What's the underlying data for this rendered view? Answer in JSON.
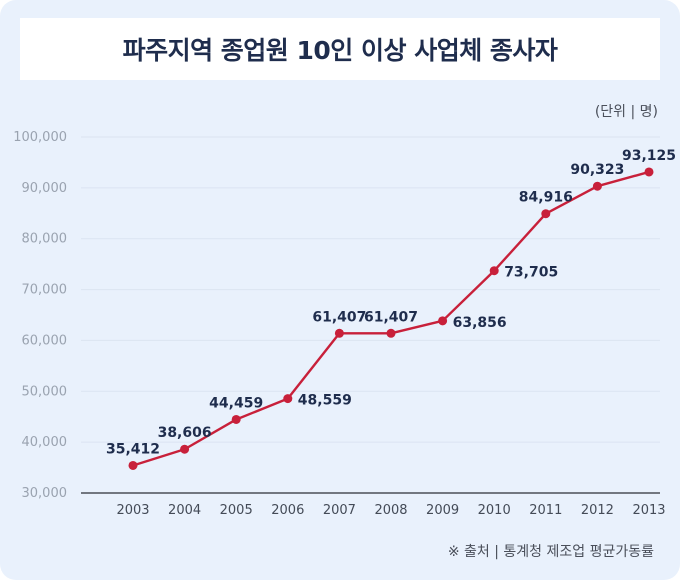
{
  "title": "파주지역 종업원 10인 이상 사업체 종사자",
  "unit_label": "(단위 | 명)",
  "source_label": "※ 출처 | 통계청 제조업 평균가동률",
  "colors": {
    "line": "#c8203a",
    "background": "#e9f1fc",
    "title": "#1f2d4d"
  },
  "chart_data": {
    "type": "line",
    "title": "파주지역 종업원 10인 이상 사업체 종사자",
    "xlabel": "",
    "ylabel": "",
    "categories": [
      "2003",
      "2004",
      "2005",
      "2006",
      "2007",
      "2008",
      "2009",
      "2010",
      "2011",
      "2012",
      "2013"
    ],
    "values": [
      35412,
      38606,
      44459,
      48559,
      61407,
      61407,
      63856,
      73705,
      84916,
      90323,
      93125
    ],
    "data_labels": [
      "35,412",
      "38,606",
      "44,459",
      "48,559",
      "61,407",
      "61,407",
      "63,856",
      "73,705",
      "84,916",
      "90,323",
      "93,125"
    ],
    "yticks": [
      30000,
      40000,
      50000,
      60000,
      70000,
      80000,
      90000,
      100000
    ],
    "ytick_labels": [
      "30,000",
      "40,000",
      "50,000",
      "60,000",
      "70,000",
      "80,000",
      "90,000",
      "100,000"
    ],
    "ylim": [
      30000,
      100000
    ],
    "grid": true,
    "legend": "none"
  }
}
